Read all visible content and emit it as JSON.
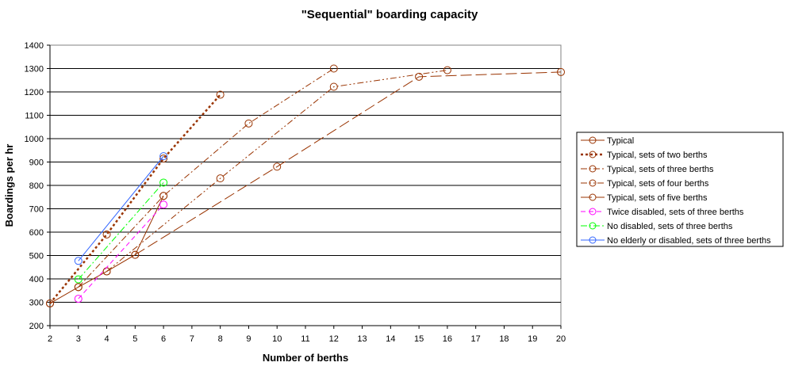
{
  "chart_data": {
    "type": "line",
    "title": "\"Sequential\" boarding capacity",
    "xlabel": "Number of berths",
    "ylabel": "Boardings per hr",
    "xlim": [
      2,
      20
    ],
    "ylim": [
      200,
      1400
    ],
    "xticks": [
      2,
      3,
      4,
      5,
      6,
      7,
      8,
      9,
      10,
      11,
      12,
      13,
      14,
      15,
      16,
      17,
      18,
      19,
      20
    ],
    "yticks": [
      200,
      300,
      400,
      500,
      600,
      700,
      800,
      900,
      1000,
      1100,
      1200,
      1300,
      1400
    ],
    "grid": "horizontal",
    "legend_position": "right",
    "colors": {
      "brown": "#993300",
      "darkred": "#993300",
      "magenta": "#ff00ff",
      "green": "#00ff00",
      "blue": "#3366ff"
    },
    "series": [
      {
        "name": "Typical",
        "color": "#993300",
        "dash": "solid",
        "x": [
          2,
          3,
          4,
          5,
          6
        ],
        "y": [
          295,
          365,
          432,
          503,
          755
        ]
      },
      {
        "name": "Typical, sets of two berths",
        "color": "#993300",
        "dash": "dot-thick",
        "x": [
          2,
          4,
          6,
          8
        ],
        "y": [
          295,
          590,
          915,
          1188
        ]
      },
      {
        "name": "Typical, sets of three berths",
        "color": "#993300",
        "dash": "dash-dot",
        "x": [
          3,
          6,
          9,
          12
        ],
        "y": [
          365,
          755,
          1065,
          1300
        ]
      },
      {
        "name": "Typical, sets of four berths",
        "color": "#993300",
        "dash": "dash-dot-dot",
        "x": [
          4,
          8,
          12,
          16
        ],
        "y": [
          432,
          830,
          1222,
          1293
        ]
      },
      {
        "name": "Typical, sets of five berths",
        "color": "#993300",
        "dash": "long-dash",
        "x": [
          5,
          10,
          15,
          20
        ],
        "y": [
          503,
          880,
          1265,
          1285
        ]
      },
      {
        "name": "Twice disabled, sets of three berths",
        "color": "#ff00ff",
        "dash": "dash",
        "x": [
          3,
          6
        ],
        "y": [
          315,
          718
        ]
      },
      {
        "name": "No disabled, sets of three berths",
        "color": "#00ff00",
        "dash": "dash-dot",
        "x": [
          3,
          6
        ],
        "y": [
          398,
          812
        ]
      },
      {
        "name": "No elderly or disabled, sets of three berths",
        "color": "#3366ff",
        "dash": "solid",
        "x": [
          3,
          6
        ],
        "y": [
          477,
          925
        ]
      }
    ]
  }
}
